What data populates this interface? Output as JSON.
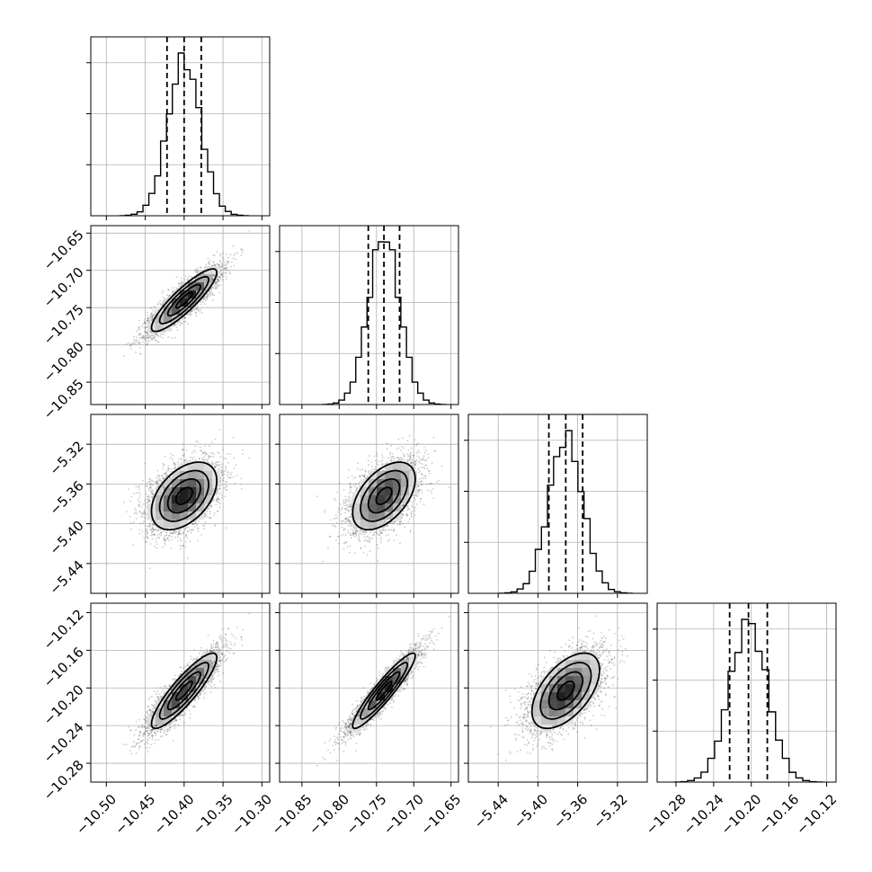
{
  "chart_data": {
    "type": "corner",
    "parameters": [
      {
        "id": "p0",
        "median": -10.4,
        "sd": 0.021,
        "q16": -10.422,
        "q84": -10.378,
        "range": [
          -10.52,
          -10.29
        ],
        "ticks": [
          "−10.50",
          "−10.45",
          "−10.40",
          "−10.35",
          "−10.30"
        ],
        "tick_values": [
          -10.5,
          -10.45,
          -10.4,
          -10.35,
          -10.3
        ]
      },
      {
        "id": "p1",
        "median": -10.74,
        "sd": 0.021,
        "q16": -10.761,
        "q84": -10.719,
        "range": [
          -10.88,
          -10.64
        ],
        "ticks": [
          "−10.85",
          "−10.80",
          "−10.75",
          "−10.70",
          "−10.65"
        ],
        "tick_values": [
          -10.85,
          -10.8,
          -10.75,
          -10.7,
          -10.65
        ]
      },
      {
        "id": "p2",
        "median": -5.372,
        "sd": 0.017,
        "q16": -5.389,
        "q84": -5.355,
        "range": [
          -5.47,
          -5.29
        ],
        "ticks": [
          "−5.44",
          "−5.40",
          "−5.36",
          "−5.32"
        ],
        "tick_values": [
          -5.44,
          -5.4,
          -5.36,
          -5.32
        ]
      },
      {
        "id": "p3",
        "median": -10.203,
        "sd": 0.02,
        "q16": -10.223,
        "q84": -10.183,
        "range": [
          -10.3,
          -10.11
        ],
        "ticks": [
          "−10.28",
          "−10.24",
          "−10.20",
          "−10.16",
          "−10.12"
        ],
        "tick_values": [
          -10.28,
          -10.24,
          -10.2,
          -10.16,
          -10.12
        ]
      }
    ],
    "correlations": {
      "1_0": 0.88,
      "2_0": 0.45,
      "2_1": 0.5,
      "3_0": 0.88,
      "3_1": 0.93,
      "3_2": 0.55
    },
    "histogram_bins": 20,
    "contour_levels_sigma": [
      0.5,
      1.0,
      1.5,
      2.0
    ],
    "grid": true,
    "xlabel": "",
    "ylabel": ""
  }
}
